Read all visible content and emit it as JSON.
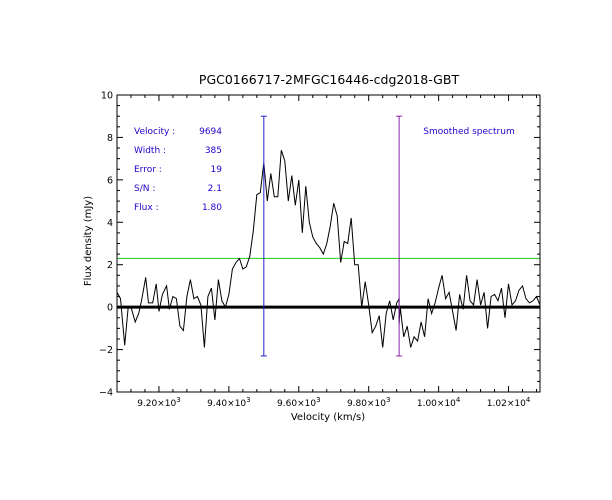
{
  "chart_data": {
    "type": "line",
    "title": "PGC0166717-2MFGC16446-cdg2018-GBT",
    "xlabel": "Velocity (km/s)",
    "ylabel": "Flux density (mJy)",
    "xlim": [
      9080,
      10290
    ],
    "ylim": [
      -4,
      10
    ],
    "x_tick_values": [
      9200,
      9400,
      9600,
      9800,
      10000,
      10200
    ],
    "x_tick_labels": [
      {
        "m": "9.20",
        "e": "3"
      },
      {
        "m": "9.40",
        "e": "3"
      },
      {
        "m": "9.60",
        "e": "3"
      },
      {
        "m": "9.80",
        "e": "3"
      },
      {
        "m": "1.00",
        "e": "4"
      },
      {
        "m": "1.02",
        "e": "4"
      }
    ],
    "y_tick_values": [
      -4,
      -2,
      0,
      2,
      4,
      6,
      8,
      10
    ],
    "y_tick_labels": [
      "−4",
      "−2",
      "0",
      "2",
      "4",
      "6",
      "8",
      "10"
    ],
    "grid": false,
    "legend_text": "Smoothed spectrum",
    "legend_placement": "top-right",
    "info_panel": [
      {
        "label": "Velocity :",
        "value": "9694"
      },
      {
        "label": "Width :",
        "value": "385"
      },
      {
        "label": "Error :",
        "value": "19"
      },
      {
        "label": "S/N :",
        "value": "2.1"
      },
      {
        "label": "Flux :",
        "value": "1.80"
      }
    ],
    "colors": {
      "spectrum": "#000000",
      "zero_line": "#000000",
      "threshold_line": "#22cc22",
      "left_marker": "#2222cc",
      "right_marker": "#8822aa",
      "annotation_text": "#2200cc"
    },
    "threshold_y": 2.3,
    "zero_y": 0,
    "markers": [
      {
        "x": 9500,
        "y_low": -2.3,
        "y_high": 9.0,
        "color": "#2222cc"
      },
      {
        "x": 9887,
        "y_low": -2.3,
        "y_high": 9.0,
        "color": "#8822aa"
      }
    ],
    "series": [
      {
        "x": [
          9080,
          9090,
          9102,
          9112,
          9120,
          9132,
          9142,
          9150,
          9162,
          9170,
          9182,
          9192,
          9200,
          9210,
          9222,
          9230,
          9240,
          9250,
          9260,
          9270,
          9280,
          9290,
          9300,
          9310,
          9320,
          9330,
          9340,
          9350,
          9360,
          9370,
          9380,
          9390,
          9400,
          9410,
          9420,
          9430,
          9440,
          9450,
          9460,
          9470,
          9480,
          9490,
          9500,
          9510,
          9520,
          9530,
          9540,
          9550,
          9560,
          9570,
          9580,
          9590,
          9600,
          9610,
          9620,
          9630,
          9640,
          9650,
          9660,
          9670,
          9680,
          9690,
          9700,
          9710,
          9720,
          9730,
          9740,
          9750,
          9760,
          9770,
          9780,
          9790,
          9800,
          9810,
          9820,
          9830,
          9840,
          9850,
          9860,
          9870,
          9880,
          9887,
          9887,
          9890,
          9900,
          9910,
          9920,
          9930,
          9940,
          9950,
          9960,
          9970,
          9980,
          9990,
          10000,
          10010,
          10020,
          10030,
          10040,
          10050,
          10060,
          10070,
          10080,
          10090,
          10100,
          10110,
          10120,
          10130,
          10140,
          10150,
          10160,
          10170,
          10180,
          10190,
          10200,
          10210,
          10220,
          10230,
          10240,
          10250,
          10260,
          10270,
          10280,
          10290
        ],
        "y": [
          0.7,
          0.4,
          -1.8,
          0.0,
          0.0,
          -0.7,
          -0.3,
          0.3,
          1.4,
          0.2,
          0.2,
          1.1,
          -0.2,
          0.6,
          1.0,
          -0.1,
          0.5,
          0.4,
          -0.9,
          -1.1,
          0.5,
          1.3,
          0.4,
          0.5,
          0.1,
          -1.9,
          0.5,
          0.9,
          -0.6,
          1.3,
          0.3,
          0.0,
          0.6,
          1.8,
          2.1,
          2.3,
          1.8,
          1.9,
          2.4,
          3.6,
          5.3,
          5.4,
          6.8,
          5.0,
          6.3,
          5.2,
          5.2,
          7.4,
          6.9,
          5.0,
          6.2,
          4.8,
          6.0,
          3.5,
          5.7,
          4.0,
          3.3,
          3.0,
          2.8,
          2.5,
          3.0,
          3.8,
          4.9,
          4.3,
          2.1,
          3.1,
          3.0,
          4.2,
          2.0,
          2.0,
          0.0,
          1.2,
          0.1,
          -1.2,
          -0.9,
          -0.4,
          -1.9,
          -0.3,
          0.3,
          -0.6,
          0.2,
          0.4,
          -0.8,
          0.0,
          -1.4,
          -0.9,
          -1.9,
          -1.4,
          -1.6,
          -0.7,
          -1.4,
          0.4,
          -0.3,
          0.2,
          0.9,
          1.5,
          0.4,
          0.7,
          -0.2,
          -1.1,
          0.6,
          -0.1,
          1.5,
          0.3,
          0.1,
          1.3,
          0.1,
          0.7,
          -1.0,
          0.5,
          0.6,
          0.3,
          0.9,
          -0.5,
          1.1,
          0.1,
          0.3,
          0.8,
          1.0,
          0.4,
          0.2,
          0.3,
          0.5,
          0.1
        ]
      }
    ]
  }
}
